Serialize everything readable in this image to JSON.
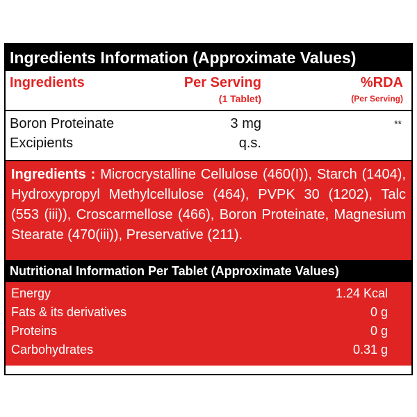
{
  "main_title": "Ingredients Information (Approximate Values)",
  "columns": {
    "ingredients": "Ingredients",
    "per_serving": "Per Serving",
    "per_serving_sub": "(1 Tablet)",
    "rda": "%RDA",
    "rda_sub": "(Per Serving)"
  },
  "rows": [
    {
      "name": "Boron Proteinate",
      "value": "3 mg",
      "rda": "**"
    },
    {
      "name": "Excipients",
      "value": "q.s.",
      "rda": ""
    }
  ],
  "ingredients_block": {
    "label": "Ingredients",
    "separator": " : ",
    "text": "Microcrystalline Cellulose (460(I)), Starch (1404), Hydroxypropyl Methylcellulose (464), PVPK 30 (1202), Talc (553 (iii)), Croscarmellose (466), Boron Proteinate, Magnesium Stearate (470(iii)), Preservative (211)."
  },
  "nutrition_title": "Nutritional Information Per Tablet (Approximate Values)",
  "nutrition": [
    {
      "name": "Energy",
      "value": "1.24 Kcal"
    },
    {
      "name": "Fats & its derivatives",
      "value": "0 g"
    },
    {
      "name": "Proteins",
      "value": "0 g"
    },
    {
      "name": "Carbohydrates",
      "value": "0.31 g"
    }
  ],
  "colors": {
    "accent_red": "#e02424",
    "black": "#000000",
    "white": "#ffffff"
  }
}
